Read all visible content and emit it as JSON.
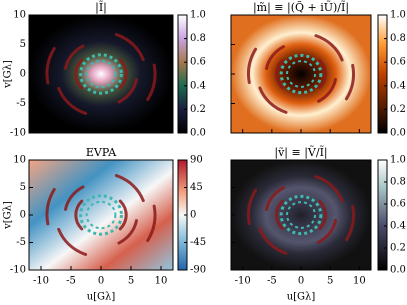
{
  "chart_data": [
    {
      "type": "heatmap",
      "title": "|Ĩ|",
      "ylabel": "v[Gλ]",
      "xlim": [
        -12,
        12
      ],
      "ylim": [
        -10,
        10
      ],
      "xticks": [
        -10,
        -5,
        0,
        5,
        10
      ],
      "yticks": [
        -10,
        -5,
        0,
        5,
        10
      ],
      "colormap": "cubehelix",
      "clim": [
        0,
        1
      ],
      "cticks": [
        {
          "value": 0,
          "label": "0.0"
        },
        {
          "value": 0.2,
          "label": "0.2"
        },
        {
          "value": 0.4,
          "label": "0.4"
        },
        {
          "value": 0.6,
          "label": "0.6"
        },
        {
          "value": 0.8,
          "label": "0.8"
        },
        {
          "value": 1,
          "label": "1.0"
        }
      ]
    },
    {
      "type": "heatmap",
      "title": "|m̃| ≡ |(Q̃ + iŨ)/Ĩ|",
      "xlim": [
        -12,
        12
      ],
      "ylim": [
        -10,
        10
      ],
      "xticks": [
        -10,
        -5,
        0,
        5,
        10
      ],
      "yticks": [
        -10,
        -5,
        0,
        5,
        10
      ],
      "colormap": "afmhot",
      "clim": [
        0,
        1
      ],
      "cticks": [
        {
          "value": 0,
          "label": "0.0"
        },
        {
          "value": 0.2,
          "label": "0.2"
        },
        {
          "value": 0.4,
          "label": "0.4"
        },
        {
          "value": 0.6,
          "label": "0.6"
        },
        {
          "value": 0.8,
          "label": "0.8"
        },
        {
          "value": 1,
          "label": "1.0"
        }
      ]
    },
    {
      "type": "heatmap",
      "title": "EVPA",
      "xlabel": "u[Gλ]",
      "ylabel": "v[Gλ]",
      "xlim": [
        -12,
        12
      ],
      "ylim": [
        -10,
        10
      ],
      "xticks": [
        -10,
        -5,
        0,
        5,
        10
      ],
      "yticks": [
        -10,
        -5,
        0,
        5,
        10
      ],
      "colormap": "RdBu",
      "clim": [
        -90,
        90
      ],
      "cticks": [
        -90,
        -45,
        0,
        45,
        90
      ]
    },
    {
      "type": "heatmap",
      "title": "|ṽ| ≡ |Ṽ/Ĩ|",
      "xlabel": "u[Gλ]",
      "xlim": [
        -12,
        12
      ],
      "ylim": [
        -10,
        10
      ],
      "xticks": [
        -10,
        -5,
        0,
        5,
        10
      ],
      "yticks": [
        -10,
        -5,
        0,
        5,
        10
      ],
      "colormap": "bone",
      "clim": [
        0,
        1
      ],
      "cticks": [
        {
          "value": 0,
          "label": "0.0"
        },
        {
          "value": 0.2,
          "label": "0.2"
        },
        {
          "value": 0.4,
          "label": "0.4"
        },
        {
          "value": 0.6,
          "label": "0.6"
        },
        {
          "value": 0.8,
          "label": "0.8"
        },
        {
          "value": 1,
          "label": "1.0"
        }
      ]
    }
  ]
}
